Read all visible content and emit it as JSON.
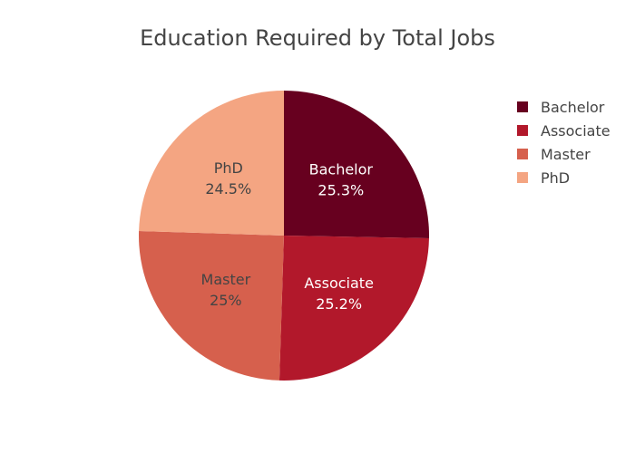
{
  "chart_data": {
    "type": "pie",
    "title": "Education Required by Total Jobs",
    "categories": [
      "Bachelor",
      "Associate",
      "Master",
      "PhD"
    ],
    "values": [
      25.3,
      25.2,
      25.0,
      24.5
    ],
    "percent_labels": [
      "25.3%",
      "25.2%",
      "25%",
      "24.5%"
    ],
    "colors": [
      "#67001f",
      "#b2182b",
      "#d6604d",
      "#f4a582"
    ],
    "label_colors": [
      "#ffffff",
      "#ffffff",
      "#444444",
      "#444444"
    ],
    "legend": {
      "position": "top-right",
      "entries": [
        "Bachelor",
        "Associate",
        "Master",
        "PhD"
      ]
    },
    "direction": "clockwise",
    "start": "top"
  }
}
